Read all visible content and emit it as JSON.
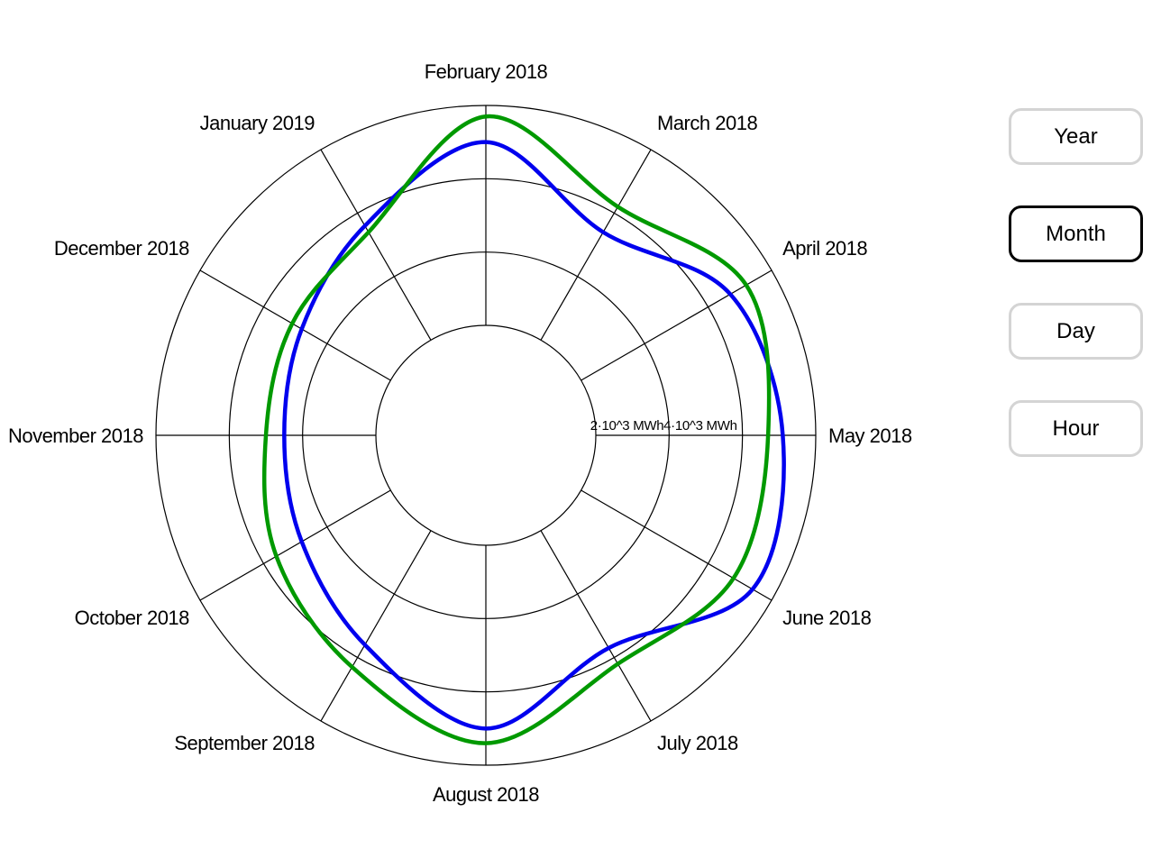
{
  "controls": {
    "buttons": [
      {
        "label": "Year",
        "active": false
      },
      {
        "label": "Month",
        "active": true
      },
      {
        "label": "Day",
        "active": false
      },
      {
        "label": "Hour",
        "active": false
      }
    ]
  },
  "chart_data": {
    "type": "radar",
    "categories": [
      "February 2018",
      "March 2018",
      "April 2018",
      "May 2018",
      "June 2018",
      "July 2018",
      "August 2018",
      "September 2018",
      "October 2018",
      "November 2018",
      "December 2018",
      "January 2019"
    ],
    "rings": [
      {
        "value": 2000,
        "label": "2·10^3 MWh"
      },
      {
        "value": 4000,
        "label": "4·10^3 MWh"
      }
    ],
    "inner_radius_value": 0,
    "rlim": [
      0,
      6000
    ],
    "grid": true,
    "colors": {
      "series_a": "#0000ee",
      "series_b": "#009900"
    },
    "series": [
      {
        "values": [
          5000,
          3400,
          4700,
          5100,
          5400,
          3700,
          5000,
          3600,
          2800,
          2500,
          2800,
          3600
        ]
      },
      {
        "values": [
          5700,
          4200,
          5200,
          4700,
          4800,
          4200,
          5400,
          4300,
          3600,
          3000,
          3100,
          3400
        ]
      }
    ]
  }
}
